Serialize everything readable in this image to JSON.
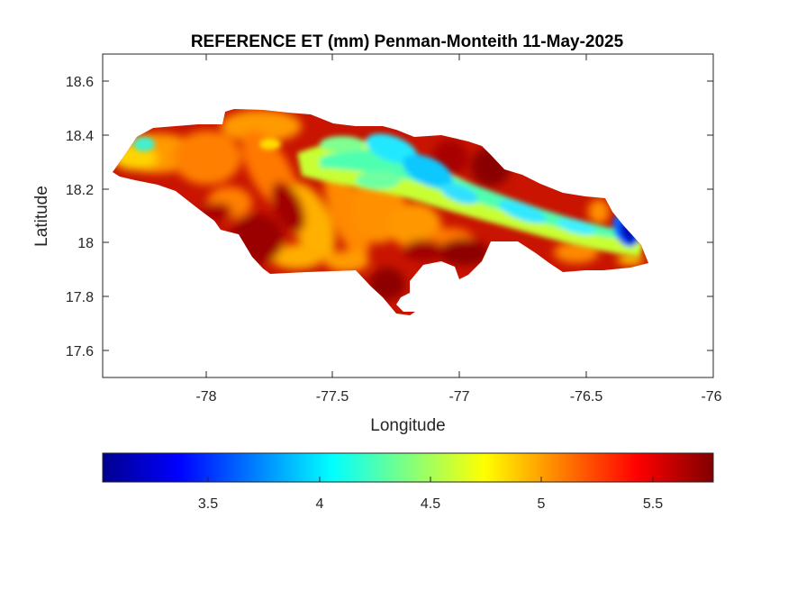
{
  "map": {
    "title": "REFERENCE ET (mm) Penman-Monteith 11-May-2025",
    "xlabel": "Longitude",
    "ylabel": "Latitude",
    "x_ticks": [
      "-78",
      "-77.5",
      "-77",
      "-76.5",
      "-76"
    ],
    "y_ticks": [
      "18.6",
      "18.4",
      "18.2",
      "18",
      "17.8",
      "17.6"
    ]
  },
  "colorbar": {
    "colormap": "jet",
    "range": [
      3.05,
      5.75
    ],
    "ticks": [
      "3.5",
      "4",
      "4.5",
      "5",
      "5.5"
    ]
  },
  "chart_data": {
    "type": "heatmap",
    "title": "REFERENCE ET (mm) Penman-Monteith 11-May-2025",
    "xlabel": "Longitude",
    "ylabel": "Latitude",
    "xlim": [
      -78.42,
      -76
    ],
    "ylim": [
      17.5,
      18.71
    ],
    "x_ticks": [
      -78,
      -77.5,
      -77,
      -76.5,
      -76
    ],
    "y_ticks": [
      17.6,
      17.8,
      18,
      18.2,
      18.4,
      18.6
    ],
    "colorbar_ticks": [
      3.5,
      4,
      4.5,
      5,
      5.5
    ],
    "color_range": [
      3.05,
      5.75
    ],
    "colormap": "jet",
    "region": "Jamaica",
    "value_pattern": {
      "low_band_along": [
        [
          -77.55,
          18.3
        ],
        [
          -77.25,
          18.36
        ],
        [
          -77.05,
          18.2
        ],
        [
          -76.7,
          18.12
        ],
        [
          -76.45,
          18.06
        ]
      ],
      "minimum_near": [
        -76.3,
        18.02
      ],
      "minimum_value": 3.4,
      "typical_high_value": 5.6
    }
  }
}
